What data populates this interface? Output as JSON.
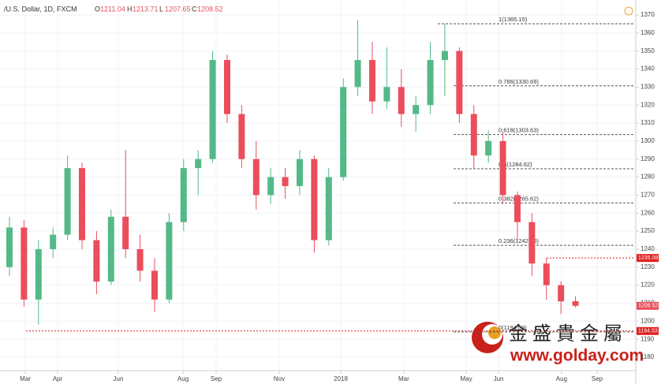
{
  "chart_data": {
    "type": "candlestick",
    "title": "/U.S. Dollar, 1D, FXCM",
    "ohlc_labels": [
      "O",
      "H",
      "L",
      "C"
    ],
    "x": [
      0,
      1,
      2,
      3,
      4,
      5,
      6,
      7,
      8,
      9,
      10,
      11,
      12,
      13,
      14,
      15,
      16,
      17,
      18,
      19,
      20,
      21,
      22,
      23,
      24,
      25,
      26,
      27,
      28,
      29,
      30,
      31,
      32,
      33,
      34,
      35,
      36,
      37,
      38,
      39
    ],
    "open": [
      1230,
      1252,
      1212,
      1240,
      1248,
      1285,
      1245,
      1222,
      1258,
      1240,
      1228,
      1212,
      1255,
      1285,
      1290,
      1345,
      1315,
      1290,
      1270,
      1280,
      1275,
      1290,
      1245,
      1280,
      1330,
      1345,
      1322,
      1330,
      1315,
      1320,
      1345,
      1350,
      1315,
      1292,
      1300,
      1270,
      1255,
      1232,
      1220,
      1211.04
    ],
    "high": [
      1258,
      1256,
      1245,
      1252,
      1292,
      1288,
      1250,
      1262,
      1295,
      1248,
      1235,
      1260,
      1290,
      1295,
      1350,
      1348,
      1320,
      1300,
      1285,
      1285,
      1295,
      1292,
      1285,
      1335,
      1367,
      1355,
      1352,
      1340,
      1325,
      1355,
      1365,
      1352,
      1320,
      1306,
      1305,
      1272,
      1260,
      1235,
      1222,
      1213.71
    ],
    "low": [
      1225,
      1208,
      1198,
      1235,
      1245,
      1240,
      1215,
      1220,
      1235,
      1222,
      1205,
      1210,
      1250,
      1270,
      1288,
      1310,
      1285,
      1262,
      1265,
      1268,
      1270,
      1238,
      1242,
      1278,
      1325,
      1315,
      1318,
      1308,
      1305,
      1315,
      1325,
      1310,
      1285,
      1288,
      1265,
      1245,
      1225,
      1212,
      1204,
      1207.65
    ],
    "close": [
      1252,
      1212,
      1240,
      1248,
      1285,
      1245,
      1222,
      1258,
      1240,
      1228,
      1212,
      1255,
      1285,
      1290,
      1345,
      1315,
      1290,
      1270,
      1280,
      1275,
      1290,
      1245,
      1280,
      1330,
      1345,
      1322,
      1330,
      1315,
      1320,
      1345,
      1350,
      1315,
      1292,
      1300,
      1270,
      1255,
      1232,
      1220,
      1211,
      1208.52
    ],
    "up_color": "#53b987",
    "down_color": "#eb4d5c",
    "xlim": [
      -0.38,
      43.1
    ],
    "xticks": [
      {
        "value": 1.09,
        "label": "Mar"
      },
      {
        "value": 3.32,
        "label": "Apr"
      },
      {
        "value": 7.5,
        "label": "Jun"
      },
      {
        "value": 11.96,
        "label": "Aug"
      },
      {
        "value": 14.24,
        "label": "Sep"
      },
      {
        "value": 18.59,
        "label": "Nov"
      },
      {
        "value": 22.83,
        "label": "2018"
      },
      {
        "value": 27.17,
        "label": "Mar"
      },
      {
        "value": 31.47,
        "label": "May"
      },
      {
        "value": 33.7,
        "label": "Jun"
      },
      {
        "value": 38.04,
        "label": "Aug"
      },
      {
        "value": 40.49,
        "label": "Sep"
      }
    ],
    "ylim": [
      1180,
      1370
    ],
    "yticks": [
      1180,
      1190,
      1200,
      1210,
      1220,
      1230,
      1240,
      1250,
      1260,
      1270,
      1280,
      1290,
      1300,
      1310,
      1320,
      1330,
      1340,
      1350,
      1360,
      1370
    ],
    "grid": true,
    "fib_levels": [
      {
        "value": 1365.15,
        "label": "1(1365.15)"
      },
      {
        "value": 1330.69,
        "label": "0.786(1330.69)"
      },
      {
        "value": 1303.63,
        "label": "0.618(1303.63)"
      },
      {
        "value": 1284.62,
        "label": "0.5(1284.62)"
      },
      {
        "value": 1265.62,
        "label": "0.382(1265.62)"
      },
      {
        "value": 1242.1,
        "label": "0.236(1242.10)"
      },
      {
        "value": 1194.09,
        "label": "0(1194.09)"
      }
    ],
    "hlines": [
      1235.08,
      1194.53
    ],
    "watermark": {
      "name": "金盛貴金屬",
      "url": "www.golday.com"
    }
  }
}
